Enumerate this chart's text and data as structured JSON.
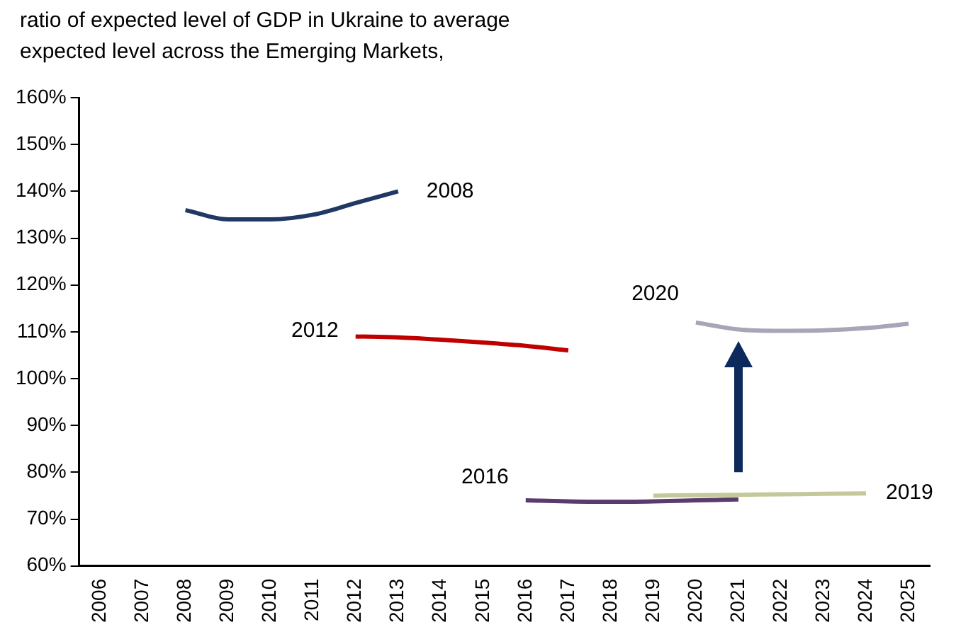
{
  "chart_data": {
    "type": "line",
    "title": "ratio of expected level of GDP in Ukraine to average\nexpected level across the Emerging Markets,",
    "categories": [
      "2006",
      "2007",
      "2008",
      "2009",
      "2010",
      "2011",
      "2012",
      "2013",
      "2014",
      "2015",
      "2016",
      "2017",
      "2018",
      "2019",
      "2020",
      "2021",
      "2022",
      "2023",
      "2024",
      "2025"
    ],
    "series": [
      {
        "name": "2008",
        "color": "#1f3864",
        "values": [
          null,
          null,
          136,
          134,
          134,
          135,
          137.5,
          140,
          null,
          null,
          null,
          null,
          null,
          null,
          null,
          null,
          null,
          null,
          null,
          null
        ]
      },
      {
        "name": "2012",
        "color": "#c00000",
        "values": [
          null,
          null,
          null,
          null,
          null,
          null,
          109,
          108.8,
          108.3,
          107.7,
          107,
          106,
          null,
          null,
          null,
          null,
          null,
          null,
          null,
          null
        ]
      },
      {
        "name": "2020",
        "color": "#a6a6b8",
        "values": [
          null,
          null,
          null,
          null,
          null,
          null,
          null,
          null,
          null,
          null,
          null,
          null,
          null,
          null,
          112,
          110.5,
          110.2,
          110.3,
          110.8,
          111.7
        ]
      },
      {
        "name": "2016",
        "color": "#5b3a6e",
        "values": [
          null,
          null,
          null,
          null,
          null,
          null,
          null,
          null,
          null,
          null,
          74,
          73.8,
          73.7,
          73.8,
          74,
          74.2,
          null,
          null,
          null,
          null
        ]
      },
      {
        "name": "2019",
        "color": "#c4c89a",
        "values": [
          null,
          null,
          null,
          null,
          null,
          null,
          null,
          null,
          null,
          null,
          null,
          null,
          null,
          75,
          75.1,
          75.2,
          75.3,
          75.4,
          75.5,
          null
        ]
      }
    ],
    "ylim": [
      60,
      160
    ],
    "yticks": [
      {
        "value": 60,
        "label": "60%"
      },
      {
        "value": 70,
        "label": "70%"
      },
      {
        "value": 80,
        "label": "80%"
      },
      {
        "value": 90,
        "label": "90%"
      },
      {
        "value": 100,
        "label": "100%"
      },
      {
        "value": 110,
        "label": "110%"
      },
      {
        "value": 120,
        "label": "120%"
      },
      {
        "value": 130,
        "label": "130%"
      },
      {
        "value": 140,
        "label": "140%"
      },
      {
        "value": 150,
        "label": "150%"
      },
      {
        "value": 160,
        "label": "160%"
      }
    ],
    "grid": false,
    "legend": false,
    "marker": "none",
    "line_style": "solid"
  }
}
